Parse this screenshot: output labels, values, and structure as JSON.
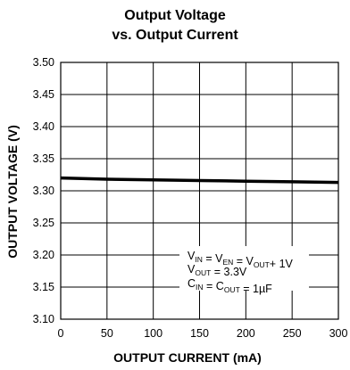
{
  "chart_data": {
    "type": "line",
    "title_line1": "Output Voltage",
    "title_line2": "vs. Output Current",
    "xlabel": "OUTPUT CURRENT (mA)",
    "ylabel": "OUTPUT VOLTAGE (V)",
    "xlim": [
      0,
      300
    ],
    "ylim": [
      3.1,
      3.5
    ],
    "x_ticks": [
      "0",
      "50",
      "100",
      "150",
      "200",
      "250",
      "300"
    ],
    "y_ticks": [
      "3.10",
      "3.15",
      "3.20",
      "3.25",
      "3.30",
      "3.35",
      "3.40",
      "3.45",
      "3.50"
    ],
    "grid": true,
    "series": [
      {
        "x": [
          0,
          50,
          100,
          150,
          200,
          250,
          300
        ],
        "y": [
          3.32,
          3.318,
          3.317,
          3.316,
          3.315,
          3.314,
          3.313
        ]
      }
    ],
    "annotation": {
      "line1": {
        "parts": [
          {
            "t": "V",
            "sub": false
          },
          {
            "t": "IN",
            "sub": true
          },
          {
            "t": " = V",
            "sub": false
          },
          {
            "t": "EN",
            "sub": true
          },
          {
            "t": " = V",
            "sub": false
          },
          {
            "t": "OUT",
            "sub": true
          },
          {
            "t": "+ 1V",
            "sub": false
          }
        ]
      },
      "line2": {
        "parts": [
          {
            "t": "V",
            "sub": false
          },
          {
            "t": "OUT",
            "sub": true
          },
          {
            "t": " = 3.3V",
            "sub": false
          }
        ]
      },
      "line3": {
        "parts": [
          {
            "t": "C",
            "sub": false
          },
          {
            "t": "IN",
            "sub": true
          },
          {
            "t": " = C",
            "sub": false
          },
          {
            "t": "OUT",
            "sub": true
          },
          {
            "t": " = 1µF",
            "sub": false
          }
        ]
      }
    },
    "colors": {
      "line": "#000000",
      "grid": "#000000",
      "background": "#ffffff"
    }
  }
}
